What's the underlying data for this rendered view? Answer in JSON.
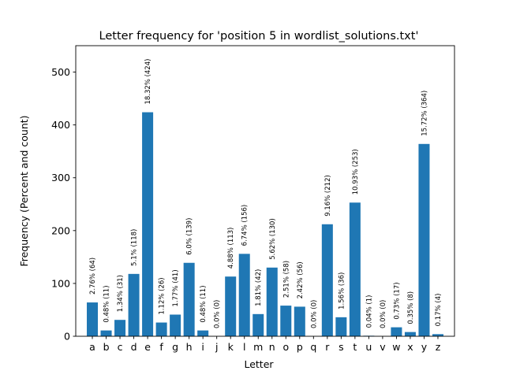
{
  "chart_data": {
    "type": "bar",
    "title": "Letter frequency for 'position 5 in wordlist_solutions.txt'",
    "xlabel": "Letter",
    "ylabel": "Frequency (Percent and count)",
    "ylim": [
      0,
      550
    ],
    "yticks": [
      0,
      100,
      200,
      300,
      400,
      500
    ],
    "grid": false,
    "categories": [
      "a",
      "b",
      "c",
      "d",
      "e",
      "f",
      "g",
      "h",
      "i",
      "j",
      "k",
      "l",
      "m",
      "n",
      "o",
      "p",
      "q",
      "r",
      "s",
      "t",
      "u",
      "v",
      "w",
      "x",
      "y",
      "z"
    ],
    "values": [
      64,
      11,
      31,
      118,
      424,
      26,
      41,
      139,
      11,
      0,
      113,
      156,
      42,
      130,
      58,
      56,
      0,
      212,
      36,
      253,
      1,
      0,
      17,
      8,
      364,
      4
    ],
    "data_labels": [
      "2.76% (64)",
      "0.48% (11)",
      "1.34% (31)",
      "5.1% (118)",
      "18.32% (424)",
      "1.12% (26)",
      "1.77% (41)",
      "6.0% (139)",
      "0.48% (11)",
      "0.0% (0)",
      "4.88% (113)",
      "6.74% (156)",
      "1.81% (42)",
      "5.62% (130)",
      "2.51% (58)",
      "2.42% (56)",
      "0.0% (0)",
      "9.16% (212)",
      "1.56% (36)",
      "10.93% (253)",
      "0.04% (1)",
      "0.0% (0)",
      "0.73% (17)",
      "0.35% (8)",
      "15.72% (364)",
      "0.17% (4)"
    ],
    "colors": {
      "bar": "#1f77b4"
    }
  }
}
